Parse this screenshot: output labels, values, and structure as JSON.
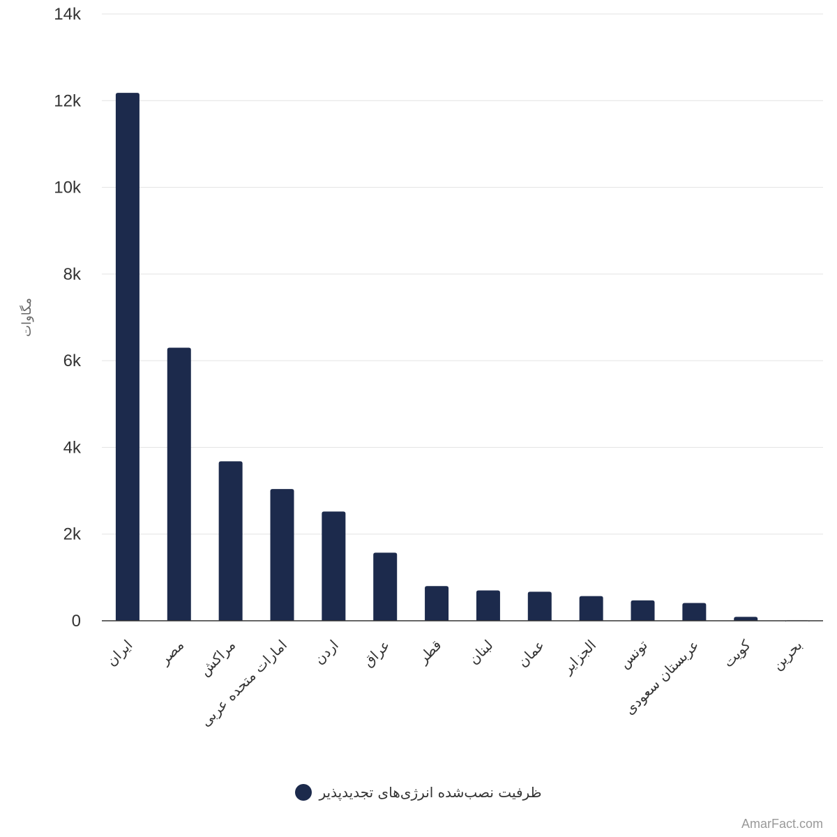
{
  "chart_data": {
    "type": "bar",
    "categories": [
      "ایران",
      "مصر",
      "مراکش",
      "امارات متحده عربی",
      "اردن",
      "عراق",
      "قطر",
      "لبنان",
      "عمان",
      "الجزایر",
      "تونس",
      "عربستان سعودی",
      "کویت",
      "بحرین"
    ],
    "series": [
      {
        "name": "ظرفیت نصب‌شده انرژی‌های تجدیدپذیر",
        "values": [
          12180,
          6300,
          3680,
          3040,
          2520,
          1570,
          800,
          700,
          670,
          570,
          470,
          410,
          90,
          10
        ]
      }
    ],
    "ylabel": "مگاوات",
    "ylim": [
      0,
      14000
    ],
    "yticks": [
      0,
      2000,
      4000,
      6000,
      8000,
      10000,
      12000,
      14000
    ],
    "ytick_labels": [
      "0",
      "2k",
      "4k",
      "6k",
      "8k",
      "10k",
      "12k",
      "14k"
    ],
    "grid": true,
    "legend": "bottom-center"
  },
  "colors": {
    "bar": "#1c2a4c",
    "grid": "#e3e3e3"
  },
  "watermark": "AmarFact.com"
}
